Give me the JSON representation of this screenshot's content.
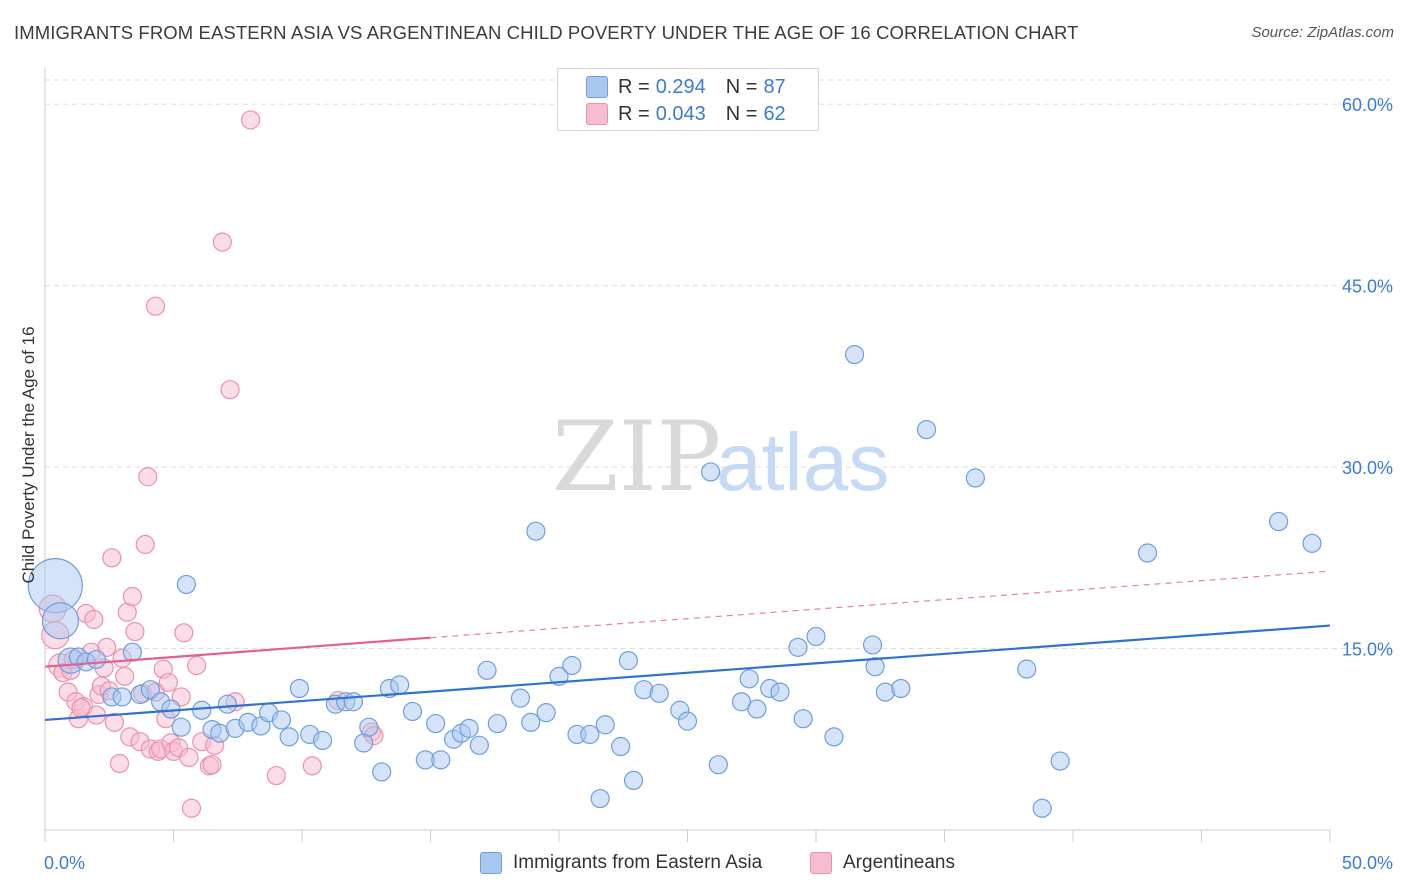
{
  "header": {
    "title": "IMMIGRANTS FROM EASTERN ASIA VS ARGENTINEAN CHILD POVERTY UNDER THE AGE OF 16 CORRELATION CHART",
    "source": "Source: ZipAtlas.com"
  },
  "legend": {
    "rows": [
      {
        "r_label": "R =",
        "r_value": "0.294",
        "n_label": "N =",
        "n_value": "87"
      },
      {
        "r_label": "R =",
        "r_value": "0.043",
        "n_label": "N =",
        "n_value": "62"
      }
    ]
  },
  "colors": {
    "blue_fill": "#a9c8f0",
    "blue_stroke": "#6d9fe0",
    "blue_line": "#2f73cf",
    "pink_fill": "#f6bccf",
    "pink_stroke": "#ee8fae",
    "pink_line": "#e45f8e",
    "axis_text": "#3b7bd6"
  },
  "chart_data": {
    "type": "scatter",
    "title": "IMMIGRANTS FROM EASTERN ASIA VS ARGENTINEAN CHILD POVERTY UNDER THE AGE OF 16 CORRELATION CHART",
    "xlabel": "",
    "ylabel": "Child Poverty Under the Age of 16",
    "xlim": [
      0,
      50
    ],
    "ylim": [
      0,
      62
    ],
    "x_tick_labels": [
      "0.0%",
      "50.0%"
    ],
    "y_ticks": [
      15,
      30,
      45,
      60
    ],
    "y_tick_labels": [
      "15.0%",
      "30.0%",
      "45.0%",
      "60.0%"
    ],
    "grid": true,
    "watermark": {
      "part1": "ZIP",
      "part2": "atlas"
    },
    "series": [
      {
        "name": "Immigrants from Eastern Asia",
        "color": "blue",
        "trend": {
          "x0": 0,
          "y0": 9.1,
          "x1": 50,
          "y1": 16.9,
          "style": "solid"
        },
        "points": [
          [
            0.4,
            20.2,
            3
          ],
          [
            0.6,
            17.3,
            2
          ],
          [
            1.0,
            14.0,
            1.4
          ],
          [
            1.3,
            14.3,
            1
          ],
          [
            1.6,
            13.9,
            1
          ],
          [
            2.0,
            14.1,
            1
          ],
          [
            2.6,
            11.0,
            1
          ],
          [
            3.0,
            11.0,
            1
          ],
          [
            3.4,
            14.7,
            1
          ],
          [
            3.7,
            11.2,
            1
          ],
          [
            4.1,
            11.6,
            1
          ],
          [
            4.5,
            10.6,
            1
          ],
          [
            4.9,
            10.0,
            1
          ],
          [
            5.3,
            8.5,
            1
          ],
          [
            5.5,
            20.3,
            1
          ],
          [
            6.1,
            9.9,
            1
          ],
          [
            6.5,
            8.3,
            1
          ],
          [
            6.8,
            8.0,
            1
          ],
          [
            7.1,
            10.4,
            1
          ],
          [
            7.4,
            8.4,
            1
          ],
          [
            7.9,
            8.9,
            1
          ],
          [
            8.4,
            8.6,
            1
          ],
          [
            8.7,
            9.7,
            1
          ],
          [
            9.2,
            9.1,
            1
          ],
          [
            9.5,
            7.7,
            1
          ],
          [
            9.9,
            11.7,
            1
          ],
          [
            10.3,
            7.9,
            1
          ],
          [
            10.8,
            7.4,
            1
          ],
          [
            11.3,
            10.4,
            1
          ],
          [
            11.7,
            10.6,
            1
          ],
          [
            12.0,
            10.6,
            1
          ],
          [
            12.4,
            7.2,
            1
          ],
          [
            12.6,
            8.5,
            1
          ],
          [
            13.1,
            4.8,
            1
          ],
          [
            13.4,
            11.7,
            1
          ],
          [
            13.8,
            12.0,
            1
          ],
          [
            14.3,
            9.8,
            1
          ],
          [
            14.8,
            5.8,
            1
          ],
          [
            15.2,
            8.8,
            1
          ],
          [
            15.4,
            5.8,
            1
          ],
          [
            15.9,
            7.5,
            1
          ],
          [
            16.2,
            8.0,
            1
          ],
          [
            16.5,
            8.4,
            1
          ],
          [
            16.9,
            7.0,
            1
          ],
          [
            17.2,
            13.2,
            1
          ],
          [
            17.6,
            8.8,
            1
          ],
          [
            18.5,
            10.9,
            1
          ],
          [
            18.9,
            8.9,
            1
          ],
          [
            19.1,
            24.7,
            1
          ],
          [
            19.5,
            9.7,
            1
          ],
          [
            20.0,
            12.7,
            1
          ],
          [
            20.5,
            13.6,
            1
          ],
          [
            20.7,
            7.9,
            1
          ],
          [
            21.2,
            7.9,
            1
          ],
          [
            21.6,
            2.6,
            1
          ],
          [
            21.8,
            8.7,
            1
          ],
          [
            22.4,
            6.9,
            1
          ],
          [
            22.7,
            14.0,
            1
          ],
          [
            22.9,
            4.1,
            1
          ],
          [
            23.3,
            11.6,
            1
          ],
          [
            23.9,
            11.3,
            1
          ],
          [
            24.7,
            9.9,
            1
          ],
          [
            25.0,
            9.0,
            1
          ],
          [
            25.9,
            29.6,
            1
          ],
          [
            26.2,
            5.4,
            1
          ],
          [
            27.1,
            10.6,
            1
          ],
          [
            27.4,
            12.5,
            1
          ],
          [
            27.7,
            10.0,
            1
          ],
          [
            28.2,
            11.7,
            1
          ],
          [
            28.6,
            11.4,
            1
          ],
          [
            29.3,
            15.1,
            1
          ],
          [
            29.5,
            9.2,
            1
          ],
          [
            30.0,
            16.0,
            1
          ],
          [
            30.7,
            7.7,
            1
          ],
          [
            31.5,
            39.3,
            1
          ],
          [
            32.2,
            15.3,
            1
          ],
          [
            32.3,
            13.5,
            1
          ],
          [
            32.7,
            11.4,
            1
          ],
          [
            33.3,
            11.7,
            1
          ],
          [
            34.3,
            33.1,
            1
          ],
          [
            36.2,
            29.1,
            1
          ],
          [
            38.2,
            13.3,
            1
          ],
          [
            38.8,
            1.8,
            1
          ],
          [
            39.5,
            5.7,
            1
          ],
          [
            42.9,
            22.9,
            1
          ],
          [
            48.0,
            25.5,
            1
          ],
          [
            49.3,
            23.7,
            1
          ]
        ]
      },
      {
        "name": "Argentineans",
        "color": "pink",
        "trend": {
          "x0": 0,
          "y0": 13.5,
          "x1": 15,
          "y1": 15.9,
          "dash_x1": 50,
          "dash_y1": 21.4,
          "style": "solid-then-dashed"
        },
        "points": [
          [
            0.3,
            18.3,
            1.5
          ],
          [
            0.4,
            16.1,
            1.5
          ],
          [
            0.6,
            13.6,
            1.3
          ],
          [
            0.7,
            13.0,
            1
          ],
          [
            0.9,
            11.4,
            1
          ],
          [
            1.0,
            13.2,
            1
          ],
          [
            1.1,
            14.1,
            1
          ],
          [
            1.2,
            10.6,
            1
          ],
          [
            1.3,
            9.2,
            1
          ],
          [
            1.5,
            10.2,
            1
          ],
          [
            1.6,
            17.9,
            1
          ],
          [
            1.8,
            14.7,
            1
          ],
          [
            1.9,
            17.4,
            1
          ],
          [
            2.0,
            9.5,
            1
          ],
          [
            2.1,
            11.2,
            1
          ],
          [
            2.2,
            11.9,
            1
          ],
          [
            2.3,
            13.4,
            1
          ],
          [
            2.4,
            15.1,
            1
          ],
          [
            2.5,
            11.5,
            1
          ],
          [
            2.6,
            22.5,
            1
          ],
          [
            2.7,
            8.9,
            1
          ],
          [
            2.9,
            5.5,
            1
          ],
          [
            3.0,
            14.2,
            1
          ],
          [
            3.1,
            12.7,
            1
          ],
          [
            3.2,
            18.0,
            1
          ],
          [
            3.3,
            7.7,
            1
          ],
          [
            3.4,
            19.3,
            1
          ],
          [
            3.5,
            16.4,
            1
          ],
          [
            3.7,
            7.3,
            1
          ],
          [
            3.8,
            11.3,
            1
          ],
          [
            3.9,
            23.6,
            1
          ],
          [
            4.0,
            29.2,
            1
          ],
          [
            4.1,
            6.7,
            1
          ],
          [
            4.3,
            11.4,
            1
          ],
          [
            4.3,
            43.3,
            1
          ],
          [
            4.4,
            6.5,
            1
          ],
          [
            4.5,
            6.7,
            1
          ],
          [
            4.6,
            13.3,
            1
          ],
          [
            4.7,
            9.2,
            1
          ],
          [
            4.8,
            12.2,
            1
          ],
          [
            4.9,
            7.2,
            1
          ],
          [
            5.0,
            6.5,
            1
          ],
          [
            5.2,
            6.8,
            1
          ],
          [
            5.3,
            11.0,
            1
          ],
          [
            5.4,
            16.3,
            1
          ],
          [
            5.6,
            6.0,
            1
          ],
          [
            5.7,
            1.8,
            1
          ],
          [
            5.9,
            13.6,
            1
          ],
          [
            6.1,
            7.3,
            1
          ],
          [
            6.4,
            5.3,
            1
          ],
          [
            6.5,
            5.4,
            1
          ],
          [
            6.6,
            7.0,
            1
          ],
          [
            6.9,
            48.6,
            1
          ],
          [
            7.2,
            36.4,
            1
          ],
          [
            7.4,
            10.6,
            1
          ],
          [
            8.0,
            58.7,
            1
          ],
          [
            9.0,
            4.5,
            1
          ],
          [
            10.4,
            5.3,
            1
          ],
          [
            11.4,
            10.7,
            1
          ],
          [
            12.7,
            8.1,
            1
          ],
          [
            12.8,
            7.8,
            1
          ],
          [
            1.4,
            10.1,
            1
          ]
        ]
      }
    ]
  },
  "bottom_legend": {
    "items": [
      {
        "label": "Immigrants from Eastern Asia"
      },
      {
        "label": "Argentineans"
      }
    ]
  }
}
